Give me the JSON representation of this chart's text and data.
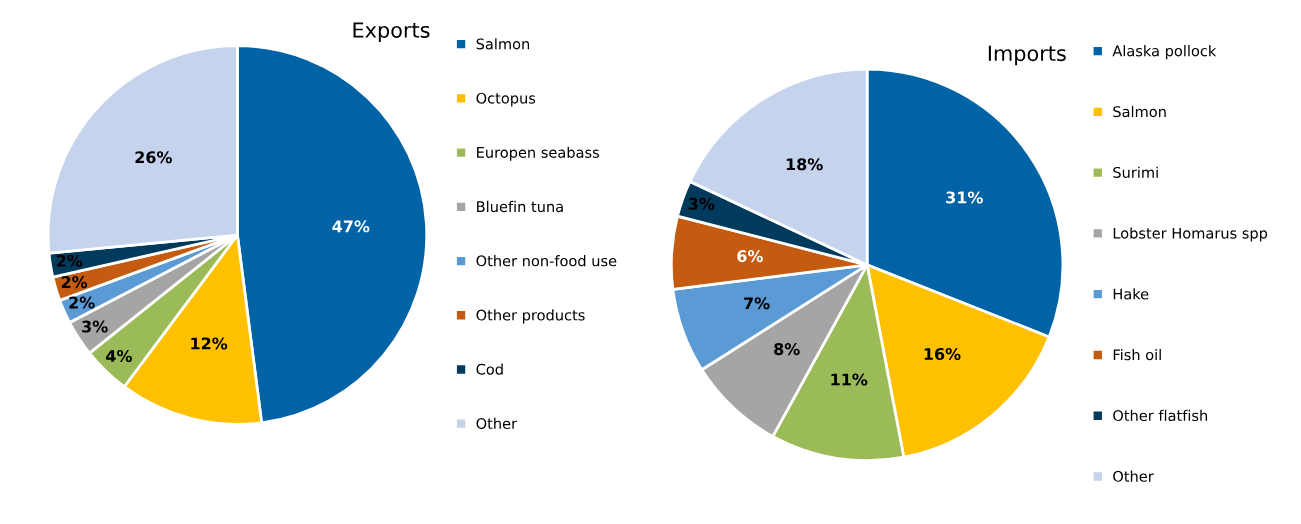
{
  "chart_data": [
    {
      "type": "pie",
      "title": "Exports",
      "legend": "right",
      "value_labels": [
        "47%",
        "12%",
        "4%",
        "3%",
        "2%",
        "2%",
        "2%",
        "26%"
      ],
      "categories": [
        "Salmon",
        "Octopus",
        "Europen seabass",
        "Bluefin tuna",
        "Other non-food use",
        "Other products",
        "Cod",
        "Other"
      ],
      "values": [
        47,
        12,
        4,
        3,
        2,
        2,
        2,
        26
      ],
      "colors": [
        "#0063a6",
        "#ffc000",
        "#9bbb59",
        "#a5a5a5",
        "#5b9bd5",
        "#c55a11",
        "#003a5d",
        "#c5d3ec"
      ]
    },
    {
      "type": "pie",
      "title": "Imports",
      "legend": "right",
      "value_labels": [
        "31%",
        "16%",
        "11%",
        "8%",
        "7%",
        "6%",
        "3%",
        "18%"
      ],
      "categories": [
        "Alaska pollock",
        "Salmon",
        "Surimi",
        "Lobster Homarus spp",
        "Hake",
        "Fish oil",
        "Other flatfish",
        "Other"
      ],
      "values": [
        31,
        16,
        11,
        8,
        7,
        6,
        3,
        18
      ],
      "colors": [
        "#0063a6",
        "#ffc000",
        "#9bbb59",
        "#a5a5a5",
        "#5b9bd5",
        "#c55a11",
        "#003a5d",
        "#c5d3ec"
      ]
    }
  ]
}
